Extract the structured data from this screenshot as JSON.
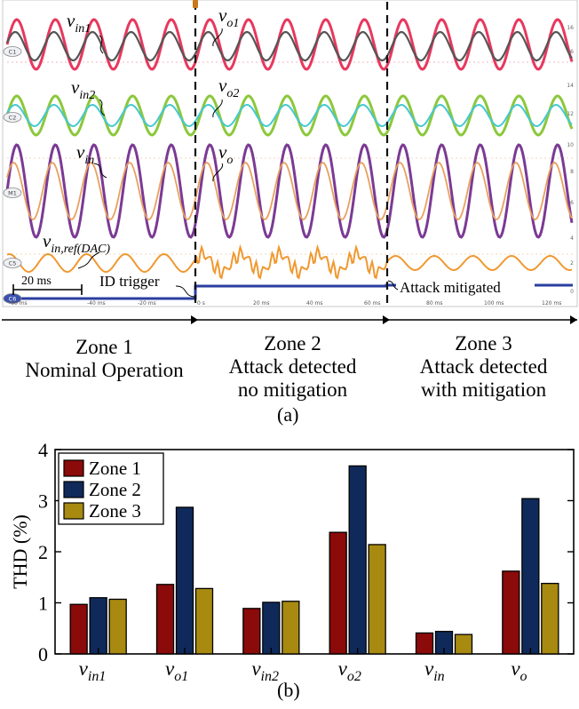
{
  "figure_a": {
    "caption": "(a)",
    "oscilloscope": {
      "trace_labels": {
        "vin1": {
          "main": "v",
          "sub": "in1"
        },
        "vo1": {
          "main": "v",
          "sub": "o1"
        },
        "vin2": {
          "main": "v",
          "sub": "in2"
        },
        "vo2": {
          "main": "v",
          "sub": "o2"
        },
        "vin": {
          "main": "v",
          "sub": "in"
        },
        "vo": {
          "main": "v",
          "sub": "o"
        },
        "vin_ref": {
          "main": "v",
          "sub": "in,ref(DAC)"
        }
      },
      "channel_badges": [
        "C1",
        "C2",
        "M1",
        "C5",
        "C6"
      ],
      "time_ticks": [
        "-60 ms",
        "-40 ms",
        "-20 ms",
        "0 s",
        "20 ms",
        "40 ms",
        "60 ms",
        "80 ms",
        "100 ms",
        "120 ms"
      ],
      "right_readouts": [
        "16",
        "16",
        "14",
        "12",
        "10",
        "8",
        "6",
        "4",
        "2",
        "0"
      ],
      "scale_bar_label": "20 ms",
      "annotations": {
        "id_trigger": "ID trigger",
        "attack_mitigated": "Attack mitigated"
      },
      "colors": {
        "vin1": "#e8385e",
        "vo1": "#555555",
        "vin2": "#8cc83c",
        "vo2": "#46c8d2",
        "vin": "#7b3a94",
        "vo": "#e8a060",
        "vin_ref": "#f09830",
        "trigger": "#2a3ea0"
      }
    },
    "zones": [
      {
        "title": "Zone 1",
        "lines": [
          "Nominal Operation"
        ]
      },
      {
        "title": "Zone 2",
        "lines": [
          "Attack detected",
          "no mitigation"
        ]
      },
      {
        "title": "Zone 3",
        "lines": [
          "Attack detected",
          "with mitigation"
        ]
      }
    ]
  },
  "figure_b": {
    "caption": "(b)"
  },
  "chart_data": {
    "type": "bar",
    "categories": [
      {
        "main": "v",
        "sub": "in1"
      },
      {
        "main": "v",
        "sub": "o1"
      },
      {
        "main": "v",
        "sub": "in2"
      },
      {
        "main": "v",
        "sub": "o2"
      },
      {
        "main": "v",
        "sub": "in"
      },
      {
        "main": "v",
        "sub": "o"
      }
    ],
    "series": [
      {
        "name": "Zone 1",
        "color": "#8b0a0a",
        "values": [
          0.97,
          1.36,
          0.89,
          2.38,
          0.41,
          1.62
        ]
      },
      {
        "name": "Zone 2",
        "color": "#0f2a5a",
        "values": [
          1.1,
          2.87,
          1.01,
          3.68,
          0.44,
          3.04
        ]
      },
      {
        "name": "Zone 3",
        "color": "#a88a10",
        "values": [
          1.07,
          1.28,
          1.03,
          2.14,
          0.38,
          1.38
        ]
      }
    ],
    "ylabel": "THD (%)",
    "ylim": [
      0,
      4
    ],
    "yticks": [
      "0",
      "1",
      "2",
      "3",
      "4"
    ],
    "legend": "top-left",
    "grid": false
  }
}
